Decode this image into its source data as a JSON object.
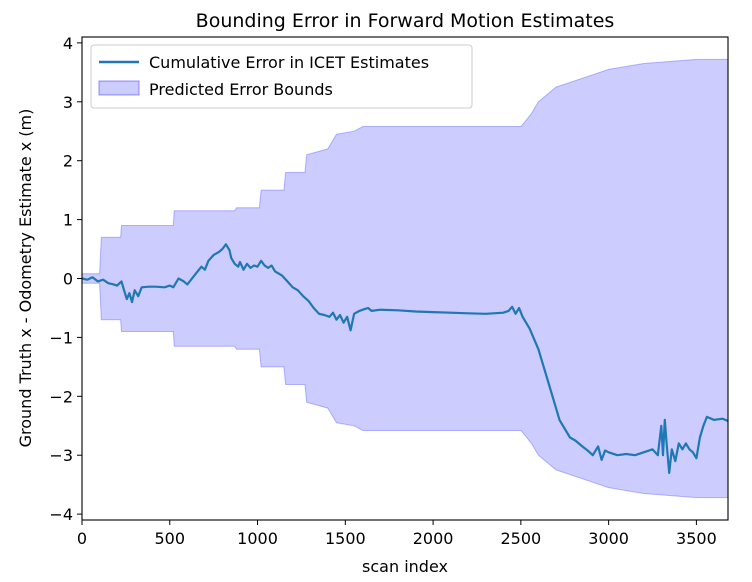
{
  "chart_data": {
    "type": "area",
    "title": "Bounding Error in Forward Motion Estimates",
    "xlabel": "scan index",
    "ylabel": "Ground Truth x - Odometry Estimate x (m)",
    "xlim": [
      0,
      3680
    ],
    "ylim": [
      -4.1,
      4.1
    ],
    "x_ticks": [
      0,
      500,
      1000,
      1500,
      2000,
      2500,
      3000,
      3500
    ],
    "y_ticks": [
      -4,
      -3,
      -2,
      -1,
      0,
      1,
      2,
      3,
      4
    ],
    "x_tick_labels": [
      "0",
      "500",
      "1000",
      "1500",
      "2000",
      "2500",
      "3000",
      "3500"
    ],
    "y_tick_labels": [
      "−4",
      "−3",
      "−2",
      "−1",
      "0",
      "1",
      "2",
      "3",
      "4"
    ],
    "grid": false,
    "legend_position": "top-left",
    "series": [
      {
        "name": "Cumulative Error in ICET Estimates",
        "kind": "line",
        "color": "#1f77b4",
        "points": [
          [
            0,
            0.0
          ],
          [
            30,
            -0.02
          ],
          [
            60,
            0.02
          ],
          [
            90,
            -0.05
          ],
          [
            120,
            -0.02
          ],
          [
            150,
            -0.08
          ],
          [
            180,
            -0.1
          ],
          [
            200,
            -0.12
          ],
          [
            225,
            -0.05
          ],
          [
            240,
            -0.2
          ],
          [
            255,
            -0.35
          ],
          [
            270,
            -0.25
          ],
          [
            285,
            -0.4
          ],
          [
            300,
            -0.2
          ],
          [
            320,
            -0.3
          ],
          [
            340,
            -0.15
          ],
          [
            380,
            -0.14
          ],
          [
            420,
            -0.14
          ],
          [
            470,
            -0.15
          ],
          [
            500,
            -0.12
          ],
          [
            520,
            -0.15
          ],
          [
            550,
            0.0
          ],
          [
            580,
            -0.05
          ],
          [
            600,
            -0.1
          ],
          [
            640,
            0.05
          ],
          [
            680,
            0.2
          ],
          [
            700,
            0.15
          ],
          [
            720,
            0.3
          ],
          [
            750,
            0.4
          ],
          [
            780,
            0.45
          ],
          [
            800,
            0.5
          ],
          [
            820,
            0.58
          ],
          [
            840,
            0.48
          ],
          [
            850,
            0.35
          ],
          [
            870,
            0.25
          ],
          [
            890,
            0.2
          ],
          [
            900,
            0.28
          ],
          [
            920,
            0.15
          ],
          [
            940,
            0.25
          ],
          [
            960,
            0.18
          ],
          [
            980,
            0.22
          ],
          [
            1000,
            0.2
          ],
          [
            1020,
            0.3
          ],
          [
            1040,
            0.22
          ],
          [
            1060,
            0.18
          ],
          [
            1080,
            0.22
          ],
          [
            1100,
            0.12
          ],
          [
            1140,
            0.05
          ],
          [
            1170,
            -0.05
          ],
          [
            1200,
            -0.15
          ],
          [
            1230,
            -0.2
          ],
          [
            1260,
            -0.3
          ],
          [
            1290,
            -0.38
          ],
          [
            1320,
            -0.5
          ],
          [
            1350,
            -0.6
          ],
          [
            1380,
            -0.62
          ],
          [
            1410,
            -0.65
          ],
          [
            1430,
            -0.58
          ],
          [
            1450,
            -0.7
          ],
          [
            1470,
            -0.62
          ],
          [
            1490,
            -0.75
          ],
          [
            1510,
            -0.65
          ],
          [
            1530,
            -0.88
          ],
          [
            1550,
            -0.6
          ],
          [
            1580,
            -0.55
          ],
          [
            1610,
            -0.52
          ],
          [
            1630,
            -0.5
          ],
          [
            1650,
            -0.55
          ],
          [
            1700,
            -0.53
          ],
          [
            1800,
            -0.54
          ],
          [
            1900,
            -0.56
          ],
          [
            2000,
            -0.57
          ],
          [
            2100,
            -0.58
          ],
          [
            2200,
            -0.59
          ],
          [
            2300,
            -0.6
          ],
          [
            2400,
            -0.58
          ],
          [
            2430,
            -0.55
          ],
          [
            2450,
            -0.48
          ],
          [
            2470,
            -0.6
          ],
          [
            2490,
            -0.5
          ],
          [
            2510,
            -0.65
          ],
          [
            2550,
            -0.85
          ],
          [
            2600,
            -1.2
          ],
          [
            2650,
            -1.7
          ],
          [
            2680,
            -2.0
          ],
          [
            2700,
            -2.2
          ],
          [
            2720,
            -2.4
          ],
          [
            2750,
            -2.55
          ],
          [
            2780,
            -2.7
          ],
          [
            2810,
            -2.75
          ],
          [
            2850,
            -2.85
          ],
          [
            2880,
            -2.92
          ],
          [
            2910,
            -3.0
          ],
          [
            2940,
            -2.85
          ],
          [
            2960,
            -3.08
          ],
          [
            2980,
            -2.92
          ],
          [
            3000,
            -2.95
          ],
          [
            3050,
            -3.0
          ],
          [
            3100,
            -2.98
          ],
          [
            3150,
            -3.0
          ],
          [
            3200,
            -2.95
          ],
          [
            3250,
            -2.9
          ],
          [
            3280,
            -3.0
          ],
          [
            3300,
            -2.5
          ],
          [
            3310,
            -3.0
          ],
          [
            3320,
            -2.4
          ],
          [
            3330,
            -2.8
          ],
          [
            3345,
            -3.3
          ],
          [
            3360,
            -2.9
          ],
          [
            3380,
            -3.1
          ],
          [
            3400,
            -2.8
          ],
          [
            3420,
            -2.9
          ],
          [
            3440,
            -2.8
          ],
          [
            3460,
            -2.9
          ],
          [
            3480,
            -2.95
          ],
          [
            3500,
            -3.05
          ],
          [
            3520,
            -2.7
          ],
          [
            3540,
            -2.5
          ],
          [
            3560,
            -2.35
          ],
          [
            3600,
            -2.4
          ],
          [
            3650,
            -2.38
          ],
          [
            3680,
            -2.42
          ]
        ]
      },
      {
        "name": "Predicted Error Bounds",
        "kind": "band",
        "color": "#0000ff",
        "alpha": 0.2,
        "upper": [
          [
            0,
            0.08
          ],
          [
            100,
            0.08
          ],
          [
            110,
            0.7
          ],
          [
            220,
            0.7
          ],
          [
            225,
            0.9
          ],
          [
            520,
            0.9
          ],
          [
            525,
            1.15
          ],
          [
            870,
            1.15
          ],
          [
            880,
            1.2
          ],
          [
            1010,
            1.2
          ],
          [
            1020,
            1.5
          ],
          [
            1150,
            1.5
          ],
          [
            1160,
            1.8
          ],
          [
            1270,
            1.8
          ],
          [
            1280,
            2.1
          ],
          [
            1400,
            2.2
          ],
          [
            1450,
            2.45
          ],
          [
            1550,
            2.5
          ],
          [
            1600,
            2.58
          ],
          [
            2500,
            2.58
          ],
          [
            2520,
            2.65
          ],
          [
            2560,
            2.8
          ],
          [
            2600,
            3.0
          ],
          [
            2700,
            3.25
          ],
          [
            2900,
            3.45
          ],
          [
            3000,
            3.55
          ],
          [
            3200,
            3.65
          ],
          [
            3500,
            3.72
          ],
          [
            3680,
            3.72
          ]
        ],
        "lower": [
          [
            0,
            -0.08
          ],
          [
            100,
            -0.08
          ],
          [
            110,
            -0.7
          ],
          [
            220,
            -0.7
          ],
          [
            225,
            -0.9
          ],
          [
            520,
            -0.9
          ],
          [
            525,
            -1.15
          ],
          [
            870,
            -1.15
          ],
          [
            880,
            -1.2
          ],
          [
            1010,
            -1.2
          ],
          [
            1020,
            -1.5
          ],
          [
            1150,
            -1.5
          ],
          [
            1160,
            -1.8
          ],
          [
            1270,
            -1.8
          ],
          [
            1280,
            -2.1
          ],
          [
            1400,
            -2.2
          ],
          [
            1450,
            -2.45
          ],
          [
            1550,
            -2.5
          ],
          [
            1600,
            -2.58
          ],
          [
            2500,
            -2.58
          ],
          [
            2520,
            -2.65
          ],
          [
            2560,
            -2.8
          ],
          [
            2600,
            -3.0
          ],
          [
            2700,
            -3.25
          ],
          [
            2900,
            -3.45
          ],
          [
            3000,
            -3.55
          ],
          [
            3200,
            -3.65
          ],
          [
            3500,
            -3.72
          ],
          [
            3680,
            -3.72
          ]
        ]
      }
    ]
  }
}
